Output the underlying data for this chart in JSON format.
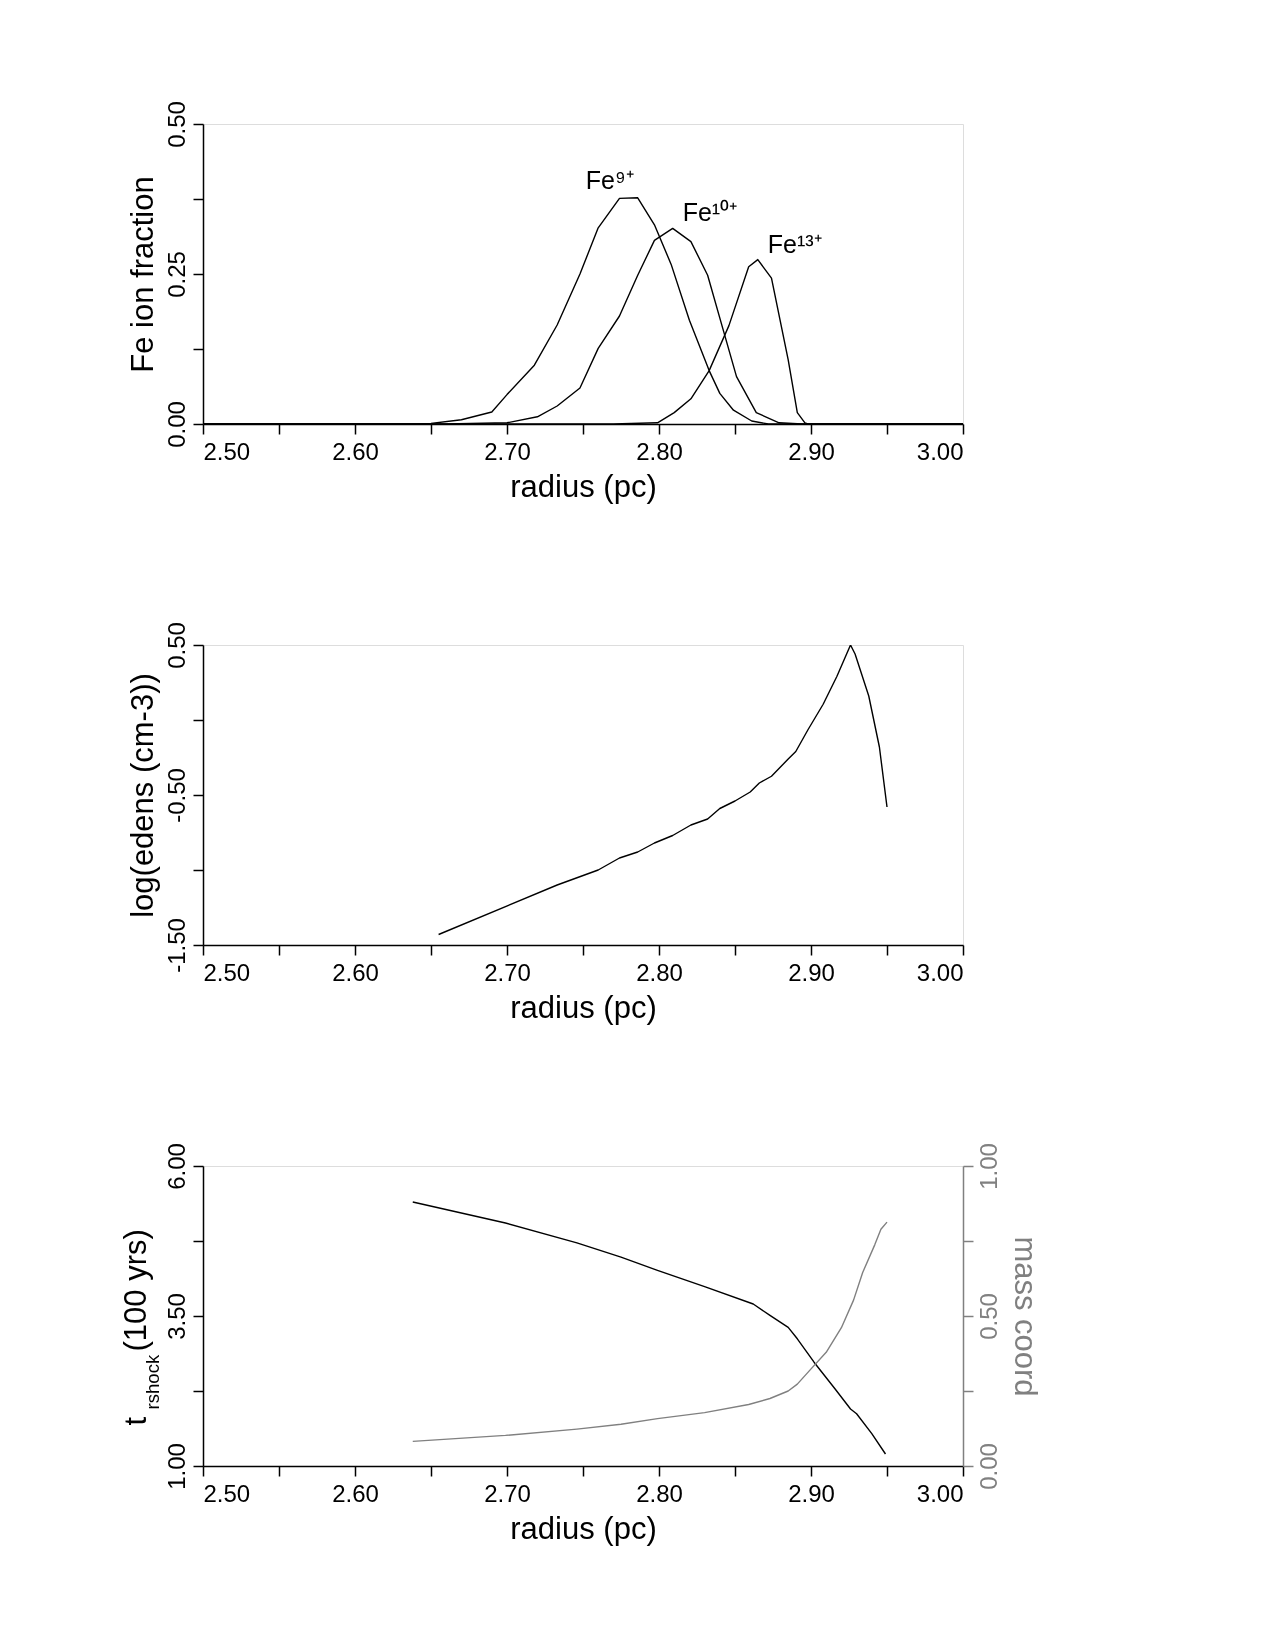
{
  "chart_data": [
    {
      "type": "line",
      "xlabel": "radius (pc)",
      "ylabel": "Fe ion fraction",
      "xlim": [
        2.5,
        3.0
      ],
      "xticks": [
        {
          "value": 2.5,
          "label": "2.50"
        },
        {
          "value": 2.55,
          "label": null
        },
        {
          "value": 2.6,
          "label": "2.60"
        },
        {
          "value": 2.65,
          "label": null
        },
        {
          "value": 2.7,
          "label": "2.70"
        },
        {
          "value": 2.75,
          "label": null
        },
        {
          "value": 2.8,
          "label": "2.80"
        },
        {
          "value": 2.85,
          "label": null
        },
        {
          "value": 2.9,
          "label": "2.90"
        },
        {
          "value": 2.95,
          "label": null
        },
        {
          "value": 3.0,
          "label": "3.00"
        }
      ],
      "ylim": [
        0,
        0.5
      ],
      "yticks": [
        {
          "value": 0,
          "label": "0.00"
        },
        {
          "value": 0.125,
          "label": null
        },
        {
          "value": 0.25,
          "label": "0.25"
        },
        {
          "value": 0.375,
          "label": null
        },
        {
          "value": 0.5,
          "label": "0.50"
        }
      ],
      "grid": false,
      "line_style": "solid",
      "marker": "none",
      "series": [
        {
          "name": "Fe⁹⁺",
          "color": "#000000",
          "x": [
            2.5,
            2.64,
            2.65,
            2.67,
            2.69,
            2.7,
            2.718,
            2.733,
            2.748,
            2.76,
            2.774,
            2.786,
            2.797,
            2.808,
            2.82,
            2.833,
            2.84,
            2.849,
            2.861,
            2.872,
            3.0
          ],
          "values": [
            0,
            0,
            0.001,
            0.007,
            0.02,
            0.049,
            0.098,
            0.165,
            0.25,
            0.327,
            0.376,
            0.377,
            0.332,
            0.266,
            0.173,
            0.089,
            0.051,
            0.023,
            0.005,
            0,
            0
          ]
        },
        {
          "name": "Fe¹⁰⁺",
          "color": "#000000",
          "x": [
            2.5,
            2.66,
            2.7,
            2.72,
            2.733,
            2.748,
            2.76,
            2.774,
            2.786,
            2.797,
            2.809,
            2.821,
            2.832,
            2.842,
            2.851,
            2.864,
            2.879,
            2.894,
            3.0
          ],
          "values": [
            0,
            0,
            0.002,
            0.012,
            0.03,
            0.06,
            0.126,
            0.18,
            0.248,
            0.306,
            0.326,
            0.304,
            0.248,
            0.159,
            0.079,
            0.019,
            0.002,
            0,
            0
          ]
        },
        {
          "name": "Fe¹³⁺",
          "color": "#000000",
          "x": [
            2.5,
            2.77,
            2.799,
            2.81,
            2.821,
            2.833,
            2.846,
            2.859,
            2.865,
            2.874,
            2.885,
            2.891,
            2.896,
            2.898,
            3.0
          ],
          "values": [
            0,
            0,
            0.002,
            0.019,
            0.042,
            0.089,
            0.164,
            0.262,
            0.274,
            0.243,
            0.107,
            0.019,
            0.002,
            0,
            0
          ]
        }
      ]
    },
    {
      "type": "line",
      "xlabel": "radius (pc)",
      "ylabel": "log(edens (cm-3))",
      "xlim": [
        2.5,
        3.0
      ],
      "xticks": [
        {
          "value": 2.5,
          "label": "2.50"
        },
        {
          "value": 2.55,
          "label": null
        },
        {
          "value": 2.6,
          "label": "2.60"
        },
        {
          "value": 2.65,
          "label": null
        },
        {
          "value": 2.7,
          "label": "2.70"
        },
        {
          "value": 2.75,
          "label": null
        },
        {
          "value": 2.8,
          "label": "2.80"
        },
        {
          "value": 2.85,
          "label": null
        },
        {
          "value": 2.9,
          "label": "2.90"
        },
        {
          "value": 2.95,
          "label": null
        },
        {
          "value": 3.0,
          "label": "3.00"
        }
      ],
      "ylim": [
        -1.5,
        0.5
      ],
      "yticks": [
        {
          "value": -1.5,
          "label": "-1.50"
        },
        {
          "value": -1,
          "label": null
        },
        {
          "value": -0.5,
          "label": "-0.50"
        },
        {
          "value": 0,
          "label": null
        },
        {
          "value": 0.5,
          "label": "0.50"
        }
      ],
      "grid": false,
      "line_style": "solid",
      "marker": "none",
      "series": [
        {
          "color": "#000000",
          "x": [
            2.655,
            2.733,
            2.76,
            2.774,
            2.786,
            2.797,
            2.809,
            2.821,
            2.832,
            2.84,
            2.85,
            2.86,
            2.866,
            2.874,
            2.885,
            2.89,
            2.898,
            2.908,
            2.917,
            2.926,
            2.929,
            2.938,
            2.945,
            2.95
          ],
          "values": [
            -1.43,
            -1.1,
            -1.0,
            -0.92,
            -0.88,
            -0.82,
            -0.77,
            -0.7,
            -0.66,
            -0.59,
            -0.54,
            -0.48,
            -0.42,
            -0.375,
            -0.26,
            -0.21,
            -0.065,
            0.105,
            0.29,
            0.5,
            0.44,
            0.16,
            -0.18,
            -0.58
          ]
        }
      ]
    },
    {
      "type": "line",
      "xlabel": "radius (pc)",
      "ylabel": "t$_{rshock}$(100 yrs)",
      "y2label": "mass coord",
      "xlim": [
        2.5,
        3.0
      ],
      "xticks": [
        {
          "value": 2.5,
          "label": "2.50"
        },
        {
          "value": 2.55,
          "label": null
        },
        {
          "value": 2.6,
          "label": "2.60"
        },
        {
          "value": 2.65,
          "label": null
        },
        {
          "value": 2.7,
          "label": "2.70"
        },
        {
          "value": 2.75,
          "label": null
        },
        {
          "value": 2.8,
          "label": "2.80"
        },
        {
          "value": 2.85,
          "label": null
        },
        {
          "value": 2.9,
          "label": "2.90"
        },
        {
          "value": 2.95,
          "label": null
        },
        {
          "value": 3.0,
          "label": "3.00"
        }
      ],
      "ylim": [
        1.0,
        6.0
      ],
      "yticks": [
        {
          "value": 1,
          "label": "1.00"
        },
        {
          "value": 2.25,
          "label": null
        },
        {
          "value": 3.5,
          "label": "3.50"
        },
        {
          "value": 4.75,
          "label": null
        },
        {
          "value": 6,
          "label": "6.00"
        }
      ],
      "y2lim": [
        0,
        1
      ],
      "y2ticks": [
        {
          "value": 0,
          "label": "0.00"
        },
        {
          "value": 0.25,
          "label": null
        },
        {
          "value": 0.5,
          "label": "0.50"
        },
        {
          "value": 0.75,
          "label": null
        },
        {
          "value": 1,
          "label": "1.00"
        }
      ],
      "grid": false,
      "line_style": "solid",
      "marker": "none",
      "series": [
        {
          "color": "#000000",
          "x": [
            2.638,
            2.699,
            2.746,
            2.775,
            2.799,
            2.83,
            2.862,
            2.873,
            2.885,
            2.891,
            2.902,
            2.916,
            2.926,
            2.93,
            2.94,
            2.949
          ],
          "values": [
            5.4,
            5.05,
            4.72,
            4.48,
            4.26,
            3.99,
            3.7,
            3.51,
            3.31,
            3.12,
            2.73,
            2.28,
            1.95,
            1.87,
            1.54,
            1.2
          ]
        },
        {
          "color": "#808080",
          "axis": "y2",
          "x": [
            2.638,
            2.699,
            2.746,
            2.775,
            2.799,
            2.83,
            2.859,
            2.873,
            2.885,
            2.891,
            2.899,
            2.91,
            2.92,
            2.928,
            2.934,
            2.942,
            2.946,
            2.95
          ],
          "values": [
            0.082,
            0.102,
            0.123,
            0.139,
            0.158,
            0.178,
            0.205,
            0.225,
            0.25,
            0.273,
            0.318,
            0.379,
            0.461,
            0.553,
            0.645,
            0.738,
            0.789,
            0.813
          ]
        }
      ]
    }
  ]
}
